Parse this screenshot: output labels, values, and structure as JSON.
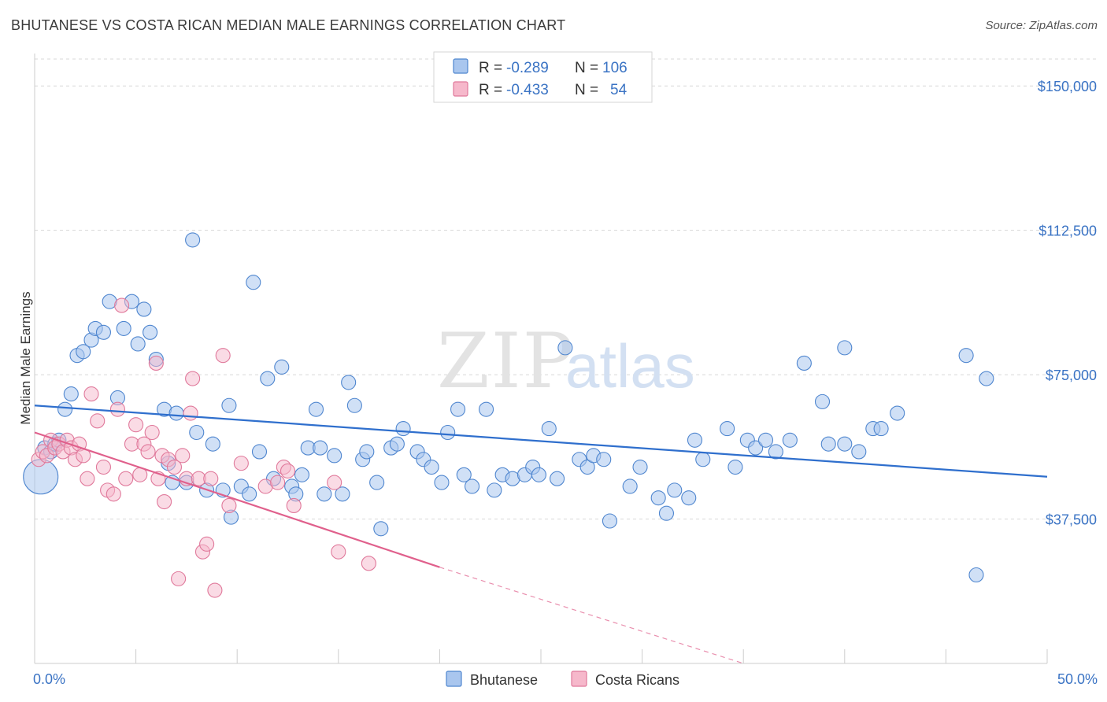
{
  "title": "BHUTANESE VS COSTA RICAN MEDIAN MALE EARNINGS CORRELATION CHART",
  "source": "Source: ZipAtlas.com",
  "watermark": {
    "zip": "ZIP",
    "atlas": "atlas"
  },
  "legend_top": [
    {
      "r_label": "R =",
      "r_value": "-0.289",
      "n_label": "N =",
      "n_value": "106"
    },
    {
      "r_label": "R =",
      "r_value": "-0.433",
      "n_label": "N =",
      "n_value": "54"
    }
  ],
  "colors": {
    "bhutanese_fill": "#a9c6ee",
    "bhutanese_stroke": "#4f86cf",
    "bhutanese_line": "#2f6fcd",
    "costa_fill": "#f6b8cb",
    "costa_stroke": "#e0799b",
    "costa_line": "#e0608c",
    "grid": "#d8d8d8",
    "axis_text": "#3a73c4"
  },
  "chart_data": {
    "type": "scatter",
    "title": "BHUTANESE VS COSTA RICAN MEDIAN MALE EARNINGS CORRELATION CHART",
    "xlabel": "",
    "ylabel": "Median Male Earnings",
    "xlim": [
      0,
      50
    ],
    "ylim": [
      0,
      157000
    ],
    "x_tick_labels": [
      "0.0%",
      "50.0%"
    ],
    "y_ticks": [
      {
        "value": 37500,
        "label": "$37,500"
      },
      {
        "value": 75000,
        "label": "$75,000"
      },
      {
        "value": 112500,
        "label": "$112,500"
      },
      {
        "value": 150000,
        "label": "$150,000"
      }
    ],
    "grid": true,
    "legend_position": "top-center",
    "series": [
      {
        "name": "Bhutanese",
        "r": -0.289,
        "n": 106,
        "trend": {
          "x0": 0,
          "y0": 67000,
          "x1": 50,
          "y1": 48500
        },
        "points": [
          [
            0.5,
            56000
          ],
          [
            0.8,
            55000
          ],
          [
            1.0,
            57000
          ],
          [
            1.2,
            58000
          ],
          [
            1.5,
            66000
          ],
          [
            1.8,
            70000
          ],
          [
            2.1,
            80000
          ],
          [
            2.4,
            81000
          ],
          [
            2.8,
            84000
          ],
          [
            3.0,
            87000
          ],
          [
            3.4,
            86000
          ],
          [
            3.7,
            94000
          ],
          [
            4.1,
            69000
          ],
          [
            4.4,
            87000
          ],
          [
            4.8,
            94000
          ],
          [
            5.1,
            83000
          ],
          [
            5.4,
            92000
          ],
          [
            5.7,
            86000
          ],
          [
            6.0,
            79000
          ],
          [
            6.4,
            66000
          ],
          [
            6.6,
            52000
          ],
          [
            6.8,
            47000
          ],
          [
            7.0,
            65000
          ],
          [
            7.5,
            47000
          ],
          [
            7.8,
            110000
          ],
          [
            8.0,
            60000
          ],
          [
            8.5,
            45000
          ],
          [
            8.8,
            57000
          ],
          [
            9.3,
            45000
          ],
          [
            9.6,
            67000
          ],
          [
            9.7,
            38000
          ],
          [
            10.2,
            46000
          ],
          [
            10.6,
            44000
          ],
          [
            10.8,
            99000
          ],
          [
            11.1,
            55000
          ],
          [
            11.5,
            74000
          ],
          [
            11.8,
            48000
          ],
          [
            12.2,
            77000
          ],
          [
            12.7,
            46000
          ],
          [
            12.9,
            44000
          ],
          [
            13.2,
            49000
          ],
          [
            13.5,
            56000
          ],
          [
            13.9,
            66000
          ],
          [
            14.1,
            56000
          ],
          [
            14.3,
            44000
          ],
          [
            14.8,
            54000
          ],
          [
            15.2,
            44000
          ],
          [
            15.5,
            73000
          ],
          [
            15.8,
            67000
          ],
          [
            16.2,
            53000
          ],
          [
            16.4,
            55000
          ],
          [
            16.9,
            47000
          ],
          [
            17.1,
            35000
          ],
          [
            17.6,
            56000
          ],
          [
            17.9,
            57000
          ],
          [
            18.2,
            61000
          ],
          [
            18.9,
            55000
          ],
          [
            19.2,
            53000
          ],
          [
            19.6,
            51000
          ],
          [
            20.1,
            47000
          ],
          [
            20.4,
            60000
          ],
          [
            20.9,
            66000
          ],
          [
            21.2,
            49000
          ],
          [
            21.6,
            46000
          ],
          [
            22.3,
            66000
          ],
          [
            22.7,
            45000
          ],
          [
            23.1,
            49000
          ],
          [
            23.6,
            48000
          ],
          [
            24.2,
            49000
          ],
          [
            24.6,
            51000
          ],
          [
            24.9,
            49000
          ],
          [
            25.4,
            61000
          ],
          [
            25.8,
            48000
          ],
          [
            26.2,
            82000
          ],
          [
            26.9,
            53000
          ],
          [
            27.3,
            51000
          ],
          [
            27.6,
            54000
          ],
          [
            28.1,
            53000
          ],
          [
            28.4,
            37000
          ],
          [
            29.4,
            46000
          ],
          [
            29.9,
            51000
          ],
          [
            30.8,
            43000
          ],
          [
            31.2,
            39000
          ],
          [
            31.6,
            45000
          ],
          [
            32.3,
            43000
          ],
          [
            32.6,
            58000
          ],
          [
            33.0,
            53000
          ],
          [
            34.2,
            61000
          ],
          [
            34.6,
            51000
          ],
          [
            35.2,
            58000
          ],
          [
            35.6,
            56000
          ],
          [
            36.1,
            58000
          ],
          [
            36.6,
            55000
          ],
          [
            37.3,
            58000
          ],
          [
            38.0,
            78000
          ],
          [
            38.9,
            68000
          ],
          [
            39.2,
            57000
          ],
          [
            40.0,
            57000
          ],
          [
            40.7,
            55000
          ],
          [
            40.0,
            82000
          ],
          [
            41.4,
            61000
          ],
          [
            41.8,
            61000
          ],
          [
            42.6,
            65000
          ],
          [
            46.0,
            80000
          ],
          [
            47.0,
            74000
          ],
          [
            46.5,
            23000
          ]
        ],
        "big_point": [
          0.3,
          48500
        ]
      },
      {
        "name": "Costa Ricans",
        "r": -0.433,
        "n": 54,
        "trend": {
          "x0": 0,
          "y0": 60000,
          "x1": 20,
          "y1": 25000,
          "dash_to_x": 35,
          "dash_to_y": -1500
        },
        "points": [
          [
            0.2,
            53000
          ],
          [
            0.4,
            55000
          ],
          [
            0.6,
            54000
          ],
          [
            0.8,
            58000
          ],
          [
            1.0,
            56000
          ],
          [
            1.2,
            57000
          ],
          [
            1.4,
            55000
          ],
          [
            1.6,
            58000
          ],
          [
            1.8,
            56000
          ],
          [
            2.0,
            53000
          ],
          [
            2.2,
            57000
          ],
          [
            2.4,
            54000
          ],
          [
            2.6,
            48000
          ],
          [
            2.8,
            70000
          ],
          [
            3.1,
            63000
          ],
          [
            3.4,
            51000
          ],
          [
            3.6,
            45000
          ],
          [
            3.9,
            44000
          ],
          [
            4.1,
            66000
          ],
          [
            4.3,
            93000
          ],
          [
            4.5,
            48000
          ],
          [
            4.8,
            57000
          ],
          [
            5.0,
            62000
          ],
          [
            5.2,
            49000
          ],
          [
            5.4,
            57000
          ],
          [
            5.6,
            55000
          ],
          [
            5.8,
            60000
          ],
          [
            6.0,
            78000
          ],
          [
            6.1,
            48000
          ],
          [
            6.3,
            54000
          ],
          [
            6.4,
            42000
          ],
          [
            6.6,
            53000
          ],
          [
            6.9,
            51000
          ],
          [
            7.1,
            22000
          ],
          [
            7.3,
            54000
          ],
          [
            7.5,
            48000
          ],
          [
            7.7,
            65000
          ],
          [
            7.8,
            74000
          ],
          [
            8.1,
            48000
          ],
          [
            8.3,
            29000
          ],
          [
            8.5,
            31000
          ],
          [
            8.7,
            48000
          ],
          [
            8.9,
            19000
          ],
          [
            9.3,
            80000
          ],
          [
            9.6,
            41000
          ],
          [
            10.2,
            52000
          ],
          [
            11.4,
            46000
          ],
          [
            12.0,
            47000
          ],
          [
            12.3,
            51000
          ],
          [
            12.8,
            41000
          ],
          [
            15.0,
            29000
          ],
          [
            16.5,
            26000
          ],
          [
            14.8,
            47000
          ],
          [
            12.5,
            50000
          ]
        ]
      }
    ]
  }
}
